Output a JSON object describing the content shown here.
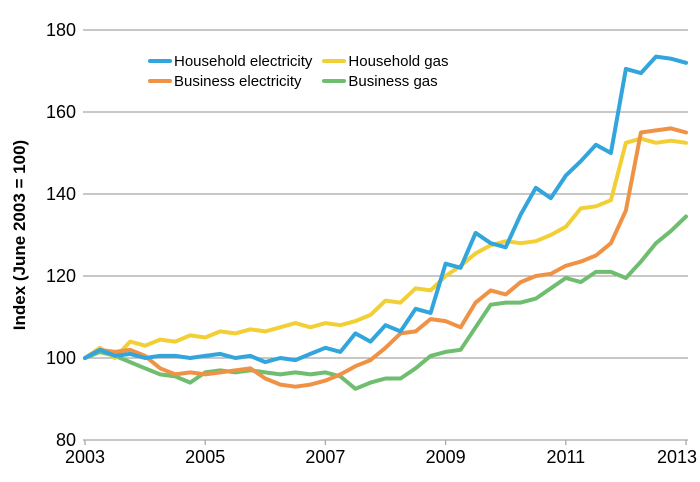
{
  "chart_data": {
    "type": "line",
    "title": "",
    "xlabel": "",
    "ylabel": "Index (June 2003 = 100)",
    "xlim": [
      2003,
      2013
    ],
    "ylim": [
      80,
      180
    ],
    "x_ticks": [
      2003,
      2005,
      2007,
      2009,
      2011,
      2013
    ],
    "y_ticks": [
      80,
      100,
      120,
      140,
      160,
      180
    ],
    "x_start": 2003,
    "x_step_years": 0.25,
    "grid": "horizontal",
    "legend_position": "top-left-inside-two-columns",
    "colors": {
      "grid": "#A8A8A8",
      "axis": "#A8A8A8",
      "text": "#000000",
      "background": "#FFFFFF"
    },
    "draw_order": [
      3,
      2,
      1,
      0
    ],
    "series": [
      {
        "name": "Household electricity",
        "color": "#31A5DC",
        "values": [
          100,
          102,
          100.5,
          101,
          100,
          100.5,
          100.5,
          100,
          100.5,
          101,
          100,
          100.5,
          99,
          100,
          99.5,
          101,
          102.5,
          101.5,
          106,
          104,
          108,
          106.5,
          112,
          111,
          123,
          122,
          130.5,
          128,
          127,
          135,
          141.5,
          139,
          144.5,
          148,
          152,
          150,
          170.5,
          169.5,
          173.5,
          173,
          172
        ]
      },
      {
        "name": "Business electricity",
        "color": "#F09245",
        "values": [
          100,
          102,
          101.5,
          102,
          100.5,
          97.5,
          96,
          96.5,
          96,
          96.5,
          97,
          97.5,
          95,
          93.5,
          93,
          93.5,
          94.5,
          96,
          98,
          99.5,
          102.5,
          106,
          106.5,
          109.5,
          109,
          107.5,
          113.5,
          116.5,
          115.5,
          118.5,
          120,
          120.5,
          122.5,
          123.5,
          125,
          128,
          136,
          155,
          155.5,
          156,
          155
        ]
      },
      {
        "name": "Household gas",
        "color": "#F2CF35",
        "values": [
          100,
          102.5,
          100,
          104,
          103,
          104.5,
          104,
          105.5,
          105,
          106.5,
          106,
          107,
          106.5,
          107.5,
          108.5,
          107.5,
          108.5,
          108,
          109,
          110.5,
          114,
          113.5,
          117,
          116.5,
          120,
          122.5,
          125.5,
          127.5,
          128.5,
          128,
          128.5,
          130,
          132,
          136.5,
          137,
          138.5,
          152.5,
          153.5,
          152.5,
          153,
          152.5
        ]
      },
      {
        "name": "Business gas",
        "color": "#6FBE70",
        "values": [
          100,
          101.5,
          100.5,
          99,
          97.5,
          96,
          95.5,
          94,
          96.5,
          97,
          96.5,
          97,
          96.5,
          96,
          96.5,
          96,
          96.5,
          95.5,
          92.5,
          94,
          95,
          95,
          97.5,
          100.5,
          101.5,
          102,
          107.5,
          113,
          113.5,
          113.5,
          114.5,
          117,
          119.5,
          118.5,
          121,
          121,
          119.5,
          123.5,
          128,
          131,
          134.5
        ]
      }
    ]
  }
}
